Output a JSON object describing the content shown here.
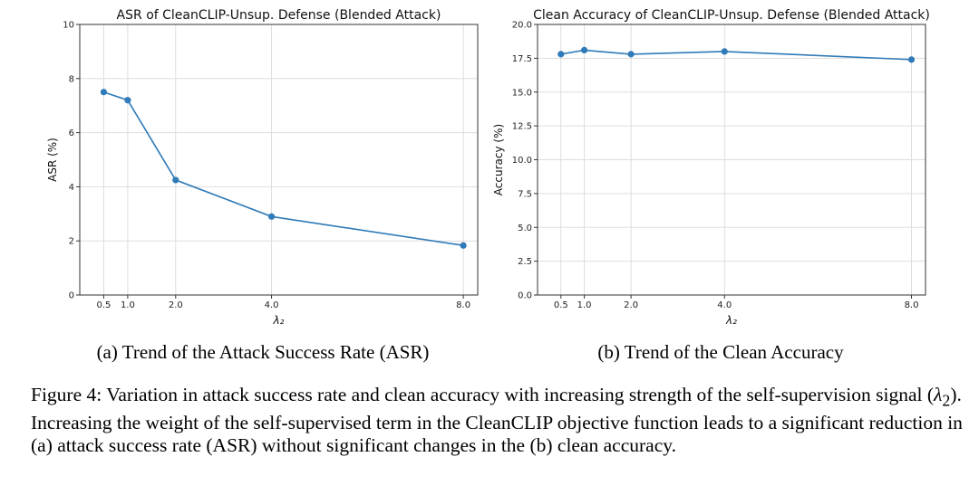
{
  "chart_data": [
    {
      "type": "line",
      "title": "ASR of CleanCLIP-Unsup. Defense (Blended Attack)",
      "xlabel": "λ₂",
      "ylabel": "ASR (%)",
      "x": [
        0.5,
        1.0,
        2.0,
        4.0,
        8.0
      ],
      "x_tick_labels": [
        "0.5",
        "1.0",
        "2.0",
        "4.0",
        "8.0"
      ],
      "series": [
        {
          "name": "ASR",
          "values": [
            7.5,
            7.2,
            4.25,
            2.9,
            1.83
          ]
        }
      ],
      "xlim": [
        0.0,
        8.3
      ],
      "ylim": [
        0,
        10
      ],
      "y_ticks": [
        0,
        2,
        4,
        6,
        8,
        10
      ],
      "y_tick_labels": [
        "0",
        "2",
        "4",
        "6",
        "8",
        "10"
      ],
      "grid": true,
      "color": "#2f7ab8"
    },
    {
      "type": "line",
      "title": "Clean Accuracy of CleanCLIP-Unsup. Defense (Blended Attack)",
      "xlabel": "λ₂",
      "ylabel": "Accuracy (%)",
      "x": [
        0.5,
        1.0,
        2.0,
        4.0,
        8.0
      ],
      "x_tick_labels": [
        "0.5",
        "1.0",
        "2.0",
        "4.0",
        "8.0"
      ],
      "series": [
        {
          "name": "Clean Accuracy",
          "values": [
            17.8,
            18.1,
            17.8,
            18.0,
            17.4
          ]
        }
      ],
      "xlim": [
        0.0,
        8.3
      ],
      "ylim": [
        0,
        20
      ],
      "y_ticks": [
        0,
        2.5,
        5,
        7.5,
        10,
        12.5,
        15,
        17.5,
        20
      ],
      "y_tick_labels": [
        "0.0",
        "2.5",
        "5.0",
        "7.5",
        "10.0",
        "12.5",
        "15.0",
        "17.5",
        "20.0"
      ],
      "grid": true,
      "color": "#2f7ab8"
    }
  ],
  "subcaptions": {
    "a": "(a)  Trend of the Attack Success Rate (ASR)",
    "b": "(b)  Trend of the Clean Accuracy"
  },
  "caption": {
    "label": "Figure 4:",
    "text_before": " Variation in attack success rate and clean accuracy with increasing strength of the self-supervision signal (",
    "symbol": "λ",
    "subscript": "2",
    "text_after": "). Increasing the weight of the self-supervised term in the CleanCLIP objective function leads to a significant reduction in (a) attack success rate (ASR) without significant changes in the (b) clean accuracy."
  }
}
